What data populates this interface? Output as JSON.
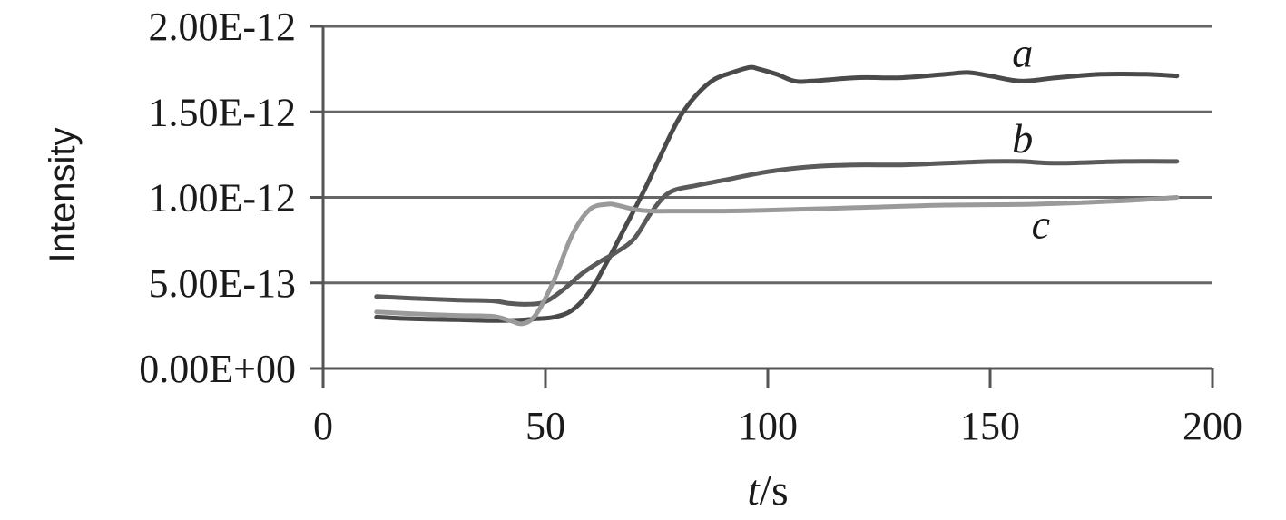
{
  "chart_data": {
    "type": "line",
    "xlabel_italic": "t",
    "xlabel_rest": "/s",
    "ylabel": "Intensity",
    "xlim": [
      0,
      200
    ],
    "ylim": [
      0,
      2e-12
    ],
    "x_ticks": [
      0,
      50,
      100,
      150,
      200
    ],
    "x_tick_labels": [
      "0",
      "50",
      "100",
      "150",
      "200"
    ],
    "y_ticks": [
      0,
      5e-13,
      1e-12,
      1.5e-12,
      2e-12
    ],
    "y_tick_labels": [
      "0.00E+00",
      "5.00E-13",
      "1.00E-12",
      "1.50E-12",
      "2.00E-12"
    ],
    "grid": "horizontal",
    "series": [
      {
        "name": "a",
        "color": "#4a4a4a",
        "x": [
          12,
          20,
          30,
          38,
          44,
          48,
          52,
          56,
          60,
          64,
          68,
          72,
          76,
          80,
          84,
          88,
          92,
          96,
          98,
          102,
          106,
          110,
          120,
          130,
          140,
          145,
          150,
          157,
          165,
          175,
          185,
          192
        ],
        "y": [
          3e-13,
          2.9e-13,
          2.85e-13,
          2.8e-13,
          2.82e-13,
          2.9e-13,
          3e-13,
          3.4e-13,
          4.5e-13,
          6.3e-13,
          8.3e-13,
          1.03e-12,
          1.25e-12,
          1.46e-12,
          1.6e-12,
          1.69e-12,
          1.73e-12,
          1.76e-12,
          1.75e-12,
          1.72e-12,
          1.68e-12,
          1.68e-12,
          1.7e-12,
          1.7e-12,
          1.72e-12,
          1.73e-12,
          1.71e-12,
          1.68e-12,
          1.7e-12,
          1.72e-12,
          1.72e-12,
          1.71e-12
        ]
      },
      {
        "name": "b",
        "color": "#5a5a5a",
        "x": [
          12,
          20,
          30,
          38,
          42,
          46,
          50,
          54,
          58,
          62,
          66,
          70,
          74,
          78,
          84,
          90,
          100,
          110,
          120,
          130,
          140,
          150,
          157,
          165,
          180,
          192
        ],
        "y": [
          4.2e-13,
          4.1e-13,
          4e-13,
          3.95e-13,
          3.8e-13,
          3.75e-13,
          3.9e-13,
          4.6e-13,
          5.5e-13,
          6.2e-13,
          6.8e-13,
          7.6e-13,
          9.2e-13,
          1.03e-12,
          1.07e-12,
          1.1e-12,
          1.15e-12,
          1.18e-12,
          1.19e-12,
          1.19e-12,
          1.2e-12,
          1.21e-12,
          1.21e-12,
          1.2e-12,
          1.21e-12,
          1.21e-12
        ]
      },
      {
        "name": "c",
        "color": "#9a9a9a",
        "x": [
          12,
          20,
          30,
          38,
          42,
          45,
          48,
          52,
          56,
          60,
          64,
          66,
          70,
          74,
          80,
          90,
          100,
          120,
          140,
          160,
          180,
          192
        ],
        "y": [
          3.3e-13,
          3.2e-13,
          3.1e-13,
          3.05e-13,
          2.8e-13,
          2.62e-13,
          3.2e-13,
          5.2e-13,
          7.8e-13,
          9.3e-13,
          9.6e-13,
          9.55e-13,
          9.3e-13,
          9.2e-13,
          9.2e-13,
          9.2e-13,
          9.25e-13,
          9.4e-13,
          9.55e-13,
          9.6e-13,
          9.8e-13,
          1e-12
        ]
      }
    ]
  }
}
